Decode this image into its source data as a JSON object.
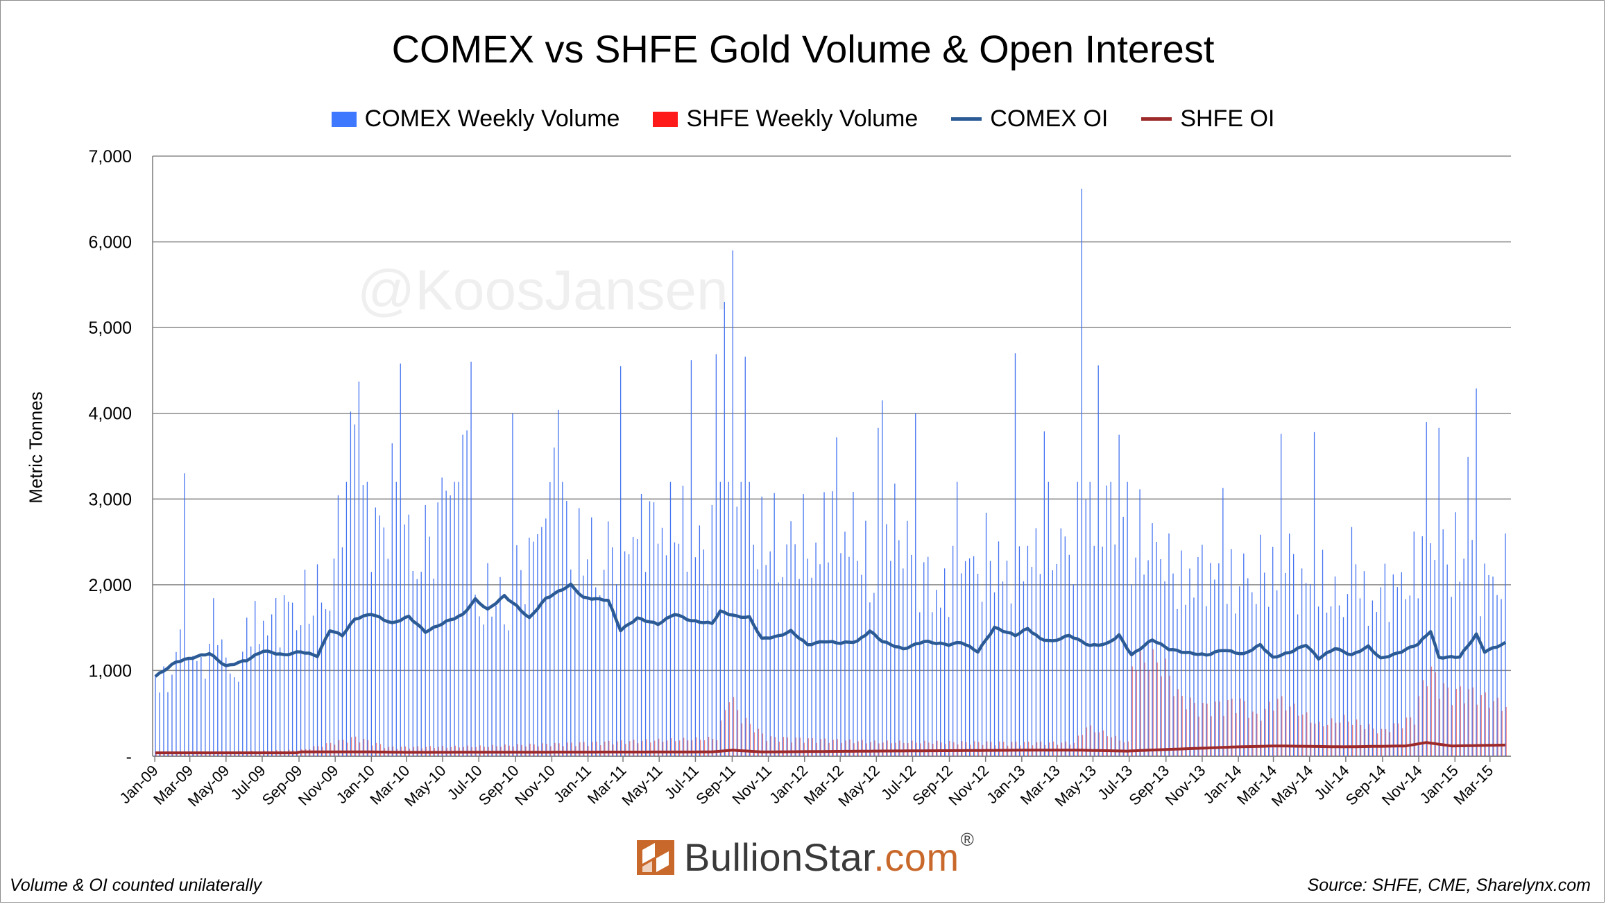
{
  "chart_data": {
    "type": "bar",
    "title": "COMEX vs SHFE Gold Volume & Open Interest",
    "ylabel": "Metric Tonnes",
    "xlabel": "",
    "ylim": [
      0,
      7000
    ],
    "yticks": [
      0,
      1000,
      2000,
      3000,
      4000,
      5000,
      6000,
      7000
    ],
    "ytick_labels": [
      "-",
      "1,000",
      "2,000",
      "3,000",
      "4,000",
      "5,000",
      "6,000",
      "7,000"
    ],
    "grid": true,
    "legend_position": "top",
    "xticks": [
      "Jan-09",
      "Mar-09",
      "May-09",
      "Jul-09",
      "Sep-09",
      "Nov-09",
      "Jan-10",
      "Mar-10",
      "May-10",
      "Jul-10",
      "Sep-10",
      "Nov-10",
      "Jan-11",
      "Mar-11",
      "May-11",
      "Jul-11",
      "Sep-11",
      "Nov-11",
      "Jan-12",
      "Mar-12",
      "May-12",
      "Jul-12",
      "Sep-12",
      "Nov-12",
      "Jan-13",
      "Mar-13",
      "May-13",
      "Jul-13",
      "Sep-13",
      "Nov-13",
      "Jan-14",
      "Mar-14",
      "May-14",
      "Jul-14",
      "Sep-14",
      "Nov-14",
      "Jan-15",
      "Mar-15"
    ],
    "x_months": [
      [
        2009,
        1,
        1.0
      ],
      [
        2009,
        2,
        1.5
      ],
      [
        2009,
        3,
        1.2
      ],
      [
        2009,
        4,
        1.6
      ],
      [
        2009,
        5,
        1.1
      ],
      [
        2009,
        6,
        1.7
      ],
      [
        2009,
        7,
        1.7
      ],
      [
        2009,
        8,
        1.9
      ],
      [
        2009,
        9,
        1.9
      ],
      [
        2009,
        10,
        2.1
      ],
      [
        2009,
        11,
        3.2
      ],
      [
        2009,
        12,
        3.3
      ],
      [
        2010,
        1,
        2.9
      ],
      [
        2010,
        2,
        3.1
      ],
      [
        2010,
        3,
        2.6
      ],
      [
        2010,
        4,
        2.7
      ],
      [
        2010,
        5,
        3.5
      ],
      [
        2010,
        6,
        2.1
      ],
      [
        2010,
        7,
        2.0
      ],
      [
        2010,
        8,
        1.9
      ],
      [
        2010,
        9,
        2.3
      ],
      [
        2010,
        10,
        3.0
      ],
      [
        2010,
        11,
        3.4
      ],
      [
        2010,
        12,
        2.6
      ],
      [
        2011,
        1,
        2.5
      ],
      [
        2011,
        2,
        2.6
      ],
      [
        2011,
        3,
        2.8
      ],
      [
        2011,
        4,
        2.9
      ],
      [
        2011,
        5,
        3.1
      ],
      [
        2011,
        6,
        2.8
      ],
      [
        2011,
        7,
        2.6
      ],
      [
        2011,
        8,
        4.4
      ],
      [
        2011,
        9,
        3.9
      ],
      [
        2011,
        10,
        2.8
      ],
      [
        2011,
        11,
        2.7
      ],
      [
        2011,
        12,
        2.7
      ],
      [
        2012,
        1,
        2.6
      ],
      [
        2012,
        2,
        3.0
      ],
      [
        2012,
        3,
        2.9
      ],
      [
        2012,
        4,
        2.4
      ],
      [
        2012,
        5,
        3.0
      ],
      [
        2012,
        6,
        2.8
      ],
      [
        2012,
        7,
        2.2
      ],
      [
        2012,
        8,
        2.1
      ],
      [
        2012,
        9,
        2.8
      ],
      [
        2012,
        10,
        2.4
      ],
      [
        2012,
        11,
        2.5
      ],
      [
        2012,
        12,
        2.3
      ],
      [
        2013,
        1,
        2.6
      ],
      [
        2013,
        2,
        2.8
      ],
      [
        2013,
        3,
        2.7
      ],
      [
        2013,
        4,
        4.0
      ],
      [
        2013,
        5,
        3.1
      ],
      [
        2013,
        6,
        3.2
      ],
      [
        2013,
        7,
        2.7
      ],
      [
        2013,
        8,
        2.7
      ],
      [
        2013,
        9,
        2.3
      ],
      [
        2013,
        10,
        2.3
      ],
      [
        2013,
        11,
        2.3
      ],
      [
        2013,
        12,
        2.1
      ],
      [
        2014,
        1,
        2.3
      ],
      [
        2014,
        2,
        2.3
      ],
      [
        2014,
        3,
        2.6
      ],
      [
        2014,
        4,
        2.2
      ],
      [
        2014,
        5,
        2.1
      ],
      [
        2014,
        6,
        2.0
      ],
      [
        2014,
        7,
        2.4
      ],
      [
        2014,
        8,
        2.0
      ],
      [
        2014,
        9,
        2.1
      ],
      [
        2014,
        10,
        2.3
      ],
      [
        2014,
        11,
        2.9
      ],
      [
        2014,
        12,
        2.4
      ],
      [
        2015,
        1,
        2.6
      ],
      [
        2015,
        2,
        2.2
      ],
      [
        2015,
        3,
        2.3
      ]
    ],
    "x_start": "2009-01-02",
    "x_end": "2015-03-27",
    "peak_volumes": [
      [
        "2009-02-20",
        3300
      ],
      [
        "2009-11-27",
        4020
      ],
      [
        "2009-12-04",
        3870
      ],
      [
        "2009-12-11",
        4370
      ],
      [
        "2010-02-05",
        3650
      ],
      [
        "2010-02-19",
        4580
      ],
      [
        "2010-04-30",
        3250
      ],
      [
        "2010-06-04",
        3750
      ],
      [
        "2010-06-11",
        3800
      ],
      [
        "2010-06-18",
        4600
      ],
      [
        "2010-08-27",
        4000
      ],
      [
        "2010-11-05",
        3600
      ],
      [
        "2010-11-12",
        4040
      ],
      [
        "2011-02-25",
        4550
      ],
      [
        "2011-06-24",
        4620
      ],
      [
        "2011-08-05",
        4690
      ],
      [
        "2011-08-19",
        5300
      ],
      [
        "2011-09-02",
        5900
      ],
      [
        "2011-09-23",
        4660
      ],
      [
        "2012-02-24",
        3720
      ],
      [
        "2012-05-04",
        3830
      ],
      [
        "2012-05-11",
        4150
      ],
      [
        "2012-07-06",
        4000
      ],
      [
        "2012-12-21",
        4700
      ],
      [
        "2013-02-08",
        3790
      ],
      [
        "2013-04-12",
        6620
      ],
      [
        "2013-05-10",
        4560
      ],
      [
        "2013-06-14",
        3750
      ],
      [
        "2013-12-06",
        3130
      ],
      [
        "2014-03-14",
        3760
      ],
      [
        "2014-05-09",
        3780
      ],
      [
        "2014-11-14",
        3900
      ],
      [
        "2014-12-05",
        3830
      ],
      [
        "2015-01-23",
        3490
      ],
      [
        "2015-02-06",
        4290
      ]
    ],
    "comex_oi_anchors": [
      [
        "2009-01-02",
        930
      ],
      [
        "2009-02-06",
        1100
      ],
      [
        "2009-04-03",
        1200
      ],
      [
        "2009-05-01",
        1050
      ],
      [
        "2009-06-05",
        1120
      ],
      [
        "2009-07-03",
        1230
      ],
      [
        "2009-08-07",
        1180
      ],
      [
        "2009-09-04",
        1220
      ],
      [
        "2009-10-02",
        1170
      ],
      [
        "2009-10-23",
        1470
      ],
      [
        "2009-11-13",
        1410
      ],
      [
        "2009-12-04",
        1600
      ],
      [
        "2010-01-01",
        1660
      ],
      [
        "2010-02-05",
        1550
      ],
      [
        "2010-03-05",
        1630
      ],
      [
        "2010-04-02",
        1450
      ],
      [
        "2010-05-07",
        1570
      ],
      [
        "2010-06-04",
        1650
      ],
      [
        "2010-06-25",
        1830
      ],
      [
        "2010-07-16",
        1710
      ],
      [
        "2010-08-13",
        1870
      ],
      [
        "2010-09-03",
        1750
      ],
      [
        "2010-09-24",
        1610
      ],
      [
        "2010-10-22",
        1840
      ],
      [
        "2010-12-03",
        2000
      ],
      [
        "2010-12-24",
        1850
      ],
      [
        "2011-02-04",
        1820
      ],
      [
        "2011-02-25",
        1470
      ],
      [
        "2011-03-25",
        1610
      ],
      [
        "2011-04-29",
        1540
      ],
      [
        "2011-05-27",
        1660
      ],
      [
        "2011-06-24",
        1580
      ],
      [
        "2011-07-29",
        1550
      ],
      [
        "2011-08-12",
        1690
      ],
      [
        "2011-09-09",
        1630
      ],
      [
        "2011-09-30",
        1620
      ],
      [
        "2011-10-21",
        1370
      ],
      [
        "2011-11-18",
        1400
      ],
      [
        "2011-12-09",
        1460
      ],
      [
        "2012-01-06",
        1300
      ],
      [
        "2012-02-03",
        1340
      ],
      [
        "2012-03-02",
        1320
      ],
      [
        "2012-03-30",
        1340
      ],
      [
        "2012-04-20",
        1460
      ],
      [
        "2012-05-11",
        1340
      ],
      [
        "2012-06-15",
        1250
      ],
      [
        "2012-07-20",
        1340
      ],
      [
        "2012-08-31",
        1300
      ],
      [
        "2012-09-21",
        1330
      ],
      [
        "2012-10-19",
        1220
      ],
      [
        "2012-11-16",
        1500
      ],
      [
        "2012-12-21",
        1410
      ],
      [
        "2013-01-11",
        1490
      ],
      [
        "2013-02-01",
        1370
      ],
      [
        "2013-02-22",
        1340
      ],
      [
        "2013-03-22",
        1410
      ],
      [
        "2013-04-26",
        1290
      ],
      [
        "2013-05-24",
        1310
      ],
      [
        "2013-06-14",
        1410
      ],
      [
        "2013-07-05",
        1180
      ],
      [
        "2013-08-09",
        1360
      ],
      [
        "2013-09-06",
        1250
      ],
      [
        "2013-10-04",
        1210
      ],
      [
        "2013-11-08",
        1180
      ],
      [
        "2013-12-06",
        1240
      ],
      [
        "2014-01-10",
        1190
      ],
      [
        "2014-02-07",
        1300
      ],
      [
        "2014-02-28",
        1150
      ],
      [
        "2014-03-28",
        1210
      ],
      [
        "2014-04-25",
        1300
      ],
      [
        "2014-05-16",
        1140
      ],
      [
        "2014-06-13",
        1260
      ],
      [
        "2014-07-11",
        1180
      ],
      [
        "2014-08-08",
        1280
      ],
      [
        "2014-08-29",
        1140
      ],
      [
        "2014-09-26",
        1200
      ],
      [
        "2014-10-31",
        1310
      ],
      [
        "2014-11-21",
        1460
      ],
      [
        "2014-12-05",
        1150
      ],
      [
        "2015-01-09",
        1160
      ],
      [
        "2015-02-06",
        1420
      ],
      [
        "2015-02-20",
        1220
      ],
      [
        "2015-03-27",
        1320
      ]
    ],
    "shfe_oi_anchors": [
      [
        "2009-01-02",
        40
      ],
      [
        "2009-08-28",
        40
      ],
      [
        "2009-09-04",
        50
      ],
      [
        "2010-01-01",
        50
      ],
      [
        "2010-03-05",
        45
      ],
      [
        "2011-07-29",
        50
      ],
      [
        "2011-09-02",
        70
      ],
      [
        "2011-10-21",
        50
      ],
      [
        "2012-05-04",
        60
      ],
      [
        "2012-12-28",
        70
      ],
      [
        "2013-04-12",
        70
      ],
      [
        "2013-06-28",
        60
      ],
      [
        "2013-09-06",
        80
      ],
      [
        "2014-01-03",
        110
      ],
      [
        "2014-03-07",
        120
      ],
      [
        "2014-06-27",
        110
      ],
      [
        "2014-10-10",
        120
      ],
      [
        "2014-11-14",
        160
      ],
      [
        "2014-12-26",
        120
      ],
      [
        "2015-03-27",
        130
      ]
    ],
    "shfe_volume_anchors": [
      [
        "2009-01-02",
        30
      ],
      [
        "2009-09-04",
        70
      ],
      [
        "2009-12-04",
        210
      ],
      [
        "2010-01-29",
        100
      ],
      [
        "2010-07-02",
        110
      ],
      [
        "2011-08-05",
        200
      ],
      [
        "2011-08-26",
        690
      ],
      [
        "2011-09-16",
        430
      ],
      [
        "2011-10-28",
        210
      ],
      [
        "2012-04-27",
        160
      ],
      [
        "2013-03-29",
        150
      ],
      [
        "2013-04-19",
        330
      ],
      [
        "2013-05-10",
        280
      ],
      [
        "2013-06-28",
        150
      ],
      [
        "2013-07-05",
        1050
      ],
      [
        "2013-08-09",
        1090
      ],
      [
        "2013-08-30",
        1000
      ],
      [
        "2013-09-20",
        690
      ],
      [
        "2013-10-25",
        550
      ],
      [
        "2013-11-29",
        580
      ],
      [
        "2014-01-03",
        620
      ],
      [
        "2014-01-31",
        440
      ],
      [
        "2014-03-07",
        640
      ],
      [
        "2014-04-11",
        510
      ],
      [
        "2014-05-16",
        350
      ],
      [
        "2014-06-27",
        420
      ],
      [
        "2014-08-29",
        280
      ],
      [
        "2014-10-24",
        440
      ],
      [
        "2014-11-14",
        1000
      ],
      [
        "2014-12-19",
        720
      ],
      [
        "2015-01-23",
        730
      ],
      [
        "2015-03-27",
        560
      ]
    ],
    "series": [
      {
        "name": "COMEX Weekly Volume",
        "type": "bar",
        "color": "#3a6cf0",
        "baseline": 2300
      },
      {
        "name": "SHFE Weekly Volume",
        "type": "bar",
        "color": "#e02020"
      },
      {
        "name": "COMEX OI",
        "type": "line",
        "color": "#2b5a95"
      },
      {
        "name": "SHFE OI",
        "type": "line",
        "color": "#9c2a2a"
      }
    ]
  },
  "watermark": "@KoosJansen",
  "logo": {
    "brand": "BullionStar",
    "suffix": ".com",
    "registered": "®",
    "icon": "bullionstar-logo-icon"
  },
  "footer": {
    "left": "Volume & OI counted unilaterally",
    "right": "Source: SHFE, CME, Sharelynx.com"
  }
}
